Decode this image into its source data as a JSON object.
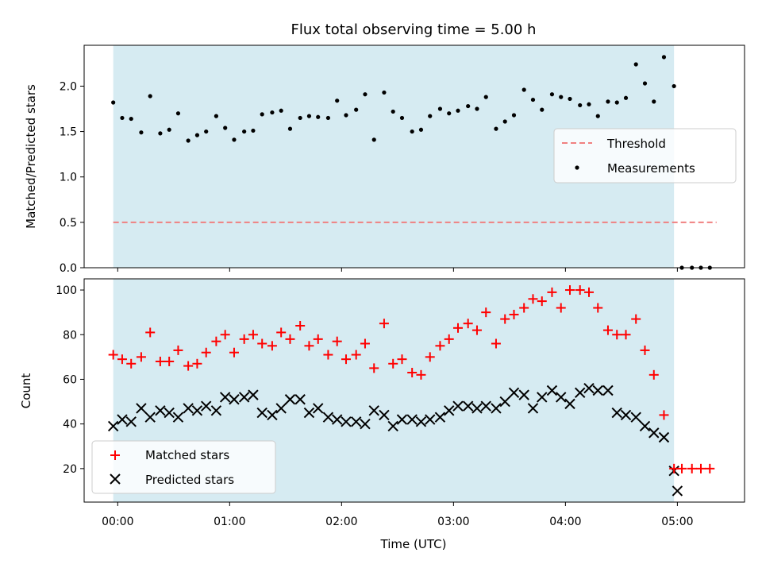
{
  "figure": {
    "title": "Flux total observing time = 5.00 h"
  },
  "chart_data": [
    {
      "type": "scatter",
      "panel": "top",
      "ylabel": "Matched/Predicted stars",
      "xlabel": "",
      "xlim": [
        -0.3,
        5.6
      ],
      "ylim": [
        0.0,
        2.45
      ],
      "yticks": [
        0.0,
        0.5,
        1.0,
        1.5,
        2.0
      ],
      "ytick_labels": [
        "0.0",
        "0.5",
        "1.0",
        "1.5",
        "2.0"
      ],
      "shaded_span": {
        "x_start": -0.04,
        "x_end": 4.97,
        "color": "#add8e6"
      },
      "legend_position": "center-right",
      "threshold": {
        "name": "Threshold",
        "value": 0.5,
        "x": [
          -0.04,
          5.35
        ],
        "color": "#f08080",
        "style": "dashed"
      },
      "series": [
        {
          "name": "Measurements",
          "color": "#000000",
          "marker": "dot",
          "x": [
            -0.04,
            0.04,
            0.12,
            0.21,
            0.29,
            0.38,
            0.46,
            0.54,
            0.63,
            0.71,
            0.79,
            0.88,
            0.96,
            1.04,
            1.13,
            1.21,
            1.29,
            1.38,
            1.46,
            1.54,
            1.63,
            1.71,
            1.79,
            1.88,
            1.96,
            2.04,
            2.13,
            2.21,
            2.29,
            2.38,
            2.46,
            2.54,
            2.63,
            2.71,
            2.79,
            2.88,
            2.96,
            3.04,
            3.13,
            3.21,
            3.29,
            3.38,
            3.46,
            3.54,
            3.63,
            3.71,
            3.79,
            3.88,
            3.96,
            4.04,
            4.13,
            4.21,
            4.29,
            4.38,
            4.46,
            4.54,
            4.63,
            4.71,
            4.79,
            4.88,
            4.97,
            5.04,
            5.13,
            5.21,
            5.29
          ],
          "y": [
            1.82,
            1.65,
            1.64,
            1.49,
            1.89,
            1.48,
            1.52,
            1.7,
            1.4,
            1.46,
            1.5,
            1.67,
            1.54,
            1.41,
            1.5,
            1.51,
            1.69,
            1.71,
            1.73,
            1.53,
            1.65,
            1.67,
            1.66,
            1.65,
            1.84,
            1.68,
            1.74,
            1.91,
            1.41,
            1.93,
            1.72,
            1.65,
            1.5,
            1.52,
            1.67,
            1.75,
            1.7,
            1.73,
            1.78,
            1.75,
            1.88,
            1.53,
            1.61,
            1.68,
            1.96,
            1.85,
            1.74,
            1.91,
            1.88,
            1.86,
            1.79,
            1.8,
            1.67,
            1.83,
            1.82,
            1.87,
            2.24,
            2.03,
            1.83,
            2.32,
            2.0,
            0.0,
            0.0,
            0.0,
            0.0
          ]
        }
      ]
    },
    {
      "type": "scatter",
      "panel": "bottom",
      "ylabel": "Count",
      "xlabel": "Time (UTC)",
      "xlim": [
        -0.3,
        5.6
      ],
      "ylim": [
        5,
        105
      ],
      "yticks": [
        20,
        40,
        60,
        80,
        100
      ],
      "ytick_labels": [
        "20",
        "40",
        "60",
        "80",
        "100"
      ],
      "xticks": [
        0,
        1,
        2,
        3,
        4,
        5
      ],
      "xtick_labels": [
        "00:00",
        "01:00",
        "02:00",
        "03:00",
        "04:00",
        "05:00"
      ],
      "shaded_span": {
        "x_start": -0.04,
        "x_end": 4.97,
        "color": "#add8e6"
      },
      "legend_position": "lower-left",
      "series": [
        {
          "name": "Matched stars",
          "color": "#ff0000",
          "marker": "plus",
          "x": [
            -0.04,
            0.04,
            0.12,
            0.21,
            0.29,
            0.38,
            0.46,
            0.54,
            0.63,
            0.71,
            0.79,
            0.88,
            0.96,
            1.04,
            1.13,
            1.21,
            1.29,
            1.38,
            1.46,
            1.54,
            1.63,
            1.71,
            1.79,
            1.88,
            1.96,
            2.04,
            2.13,
            2.21,
            2.29,
            2.38,
            2.46,
            2.54,
            2.63,
            2.71,
            2.79,
            2.88,
            2.96,
            3.04,
            3.13,
            3.21,
            3.29,
            3.38,
            3.46,
            3.54,
            3.63,
            3.71,
            3.79,
            3.88,
            3.96,
            4.04,
            4.13,
            4.21,
            4.29,
            4.38,
            4.46,
            4.54,
            4.63,
            4.71,
            4.79,
            4.88,
            4.97,
            5.04,
            5.13,
            5.21,
            5.29
          ],
          "y": [
            71,
            69,
            67,
            70,
            81,
            68,
            68,
            73,
            66,
            67,
            72,
            77,
            80,
            72,
            78,
            80,
            76,
            75,
            81,
            78,
            84,
            75,
            78,
            71,
            77,
            69,
            71,
            76,
            65,
            85,
            67,
            69,
            63,
            62,
            70,
            75,
            78,
            83,
            85,
            82,
            90,
            76,
            87,
            89,
            92,
            96,
            95,
            99,
            92,
            100,
            100,
            99,
            92,
            82,
            80,
            80,
            87,
            73,
            62,
            44,
            20,
            20,
            20,
            20,
            20
          ]
        },
        {
          "name": "Predicted stars",
          "color": "#000000",
          "marker": "x",
          "x": [
            -0.04,
            0.04,
            0.12,
            0.21,
            0.29,
            0.38,
            0.46,
            0.54,
            0.63,
            0.71,
            0.79,
            0.88,
            0.96,
            1.04,
            1.13,
            1.21,
            1.29,
            1.38,
            1.46,
            1.54,
            1.63,
            1.71,
            1.79,
            1.88,
            1.96,
            2.04,
            2.13,
            2.21,
            2.29,
            2.38,
            2.46,
            2.54,
            2.63,
            2.71,
            2.79,
            2.88,
            2.96,
            3.04,
            3.13,
            3.21,
            3.29,
            3.38,
            3.46,
            3.54,
            3.63,
            3.71,
            3.79,
            3.88,
            3.96,
            4.04,
            4.13,
            4.21,
            4.29,
            4.38,
            4.46,
            4.54,
            4.63,
            4.71,
            4.79,
            4.88,
            4.97
          ],
          "y": [
            39,
            42,
            41,
            47,
            43,
            46,
            45,
            43,
            47,
            46,
            48,
            46,
            52,
            51,
            52,
            53,
            45,
            44,
            47,
            51,
            51,
            45,
            47,
            43,
            42,
            41,
            41,
            40,
            46,
            44,
            39,
            42,
            42,
            41,
            42,
            43,
            46,
            48,
            48,
            47,
            48,
            47,
            50,
            54,
            53,
            47,
            52,
            55,
            52,
            49,
            54,
            56,
            55,
            55,
            45,
            44,
            43,
            39,
            36,
            34,
            19
          ]
        },
        {
          "name": "",
          "legend": false,
          "color": "#000000",
          "marker": "x",
          "x": [
            5.0
          ],
          "y": [
            10
          ]
        }
      ]
    }
  ]
}
